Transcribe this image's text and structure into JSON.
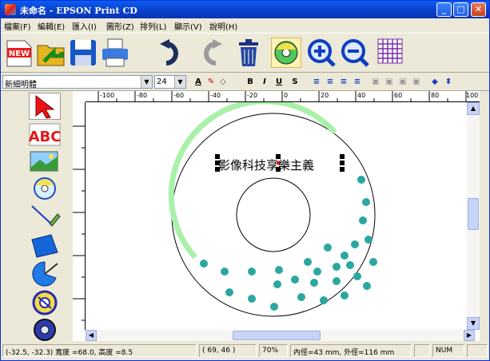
{
  "window": {
    "title": "未命名 - EPSON Print CD"
  },
  "menu": [
    {
      "label": "檔案(F)"
    },
    {
      "label": "編輯(E)"
    },
    {
      "label": "匯入(I)"
    },
    {
      "label": "圖形(Z)"
    },
    {
      "label": "排列(L)"
    },
    {
      "label": "顯示(V)"
    },
    {
      "label": "說明(H)"
    }
  ],
  "toolbar": {
    "new_label": "NEW",
    "icons": [
      "new-icon",
      "open-icon",
      "save-icon",
      "print-icon",
      "undo-icon",
      "redo-icon",
      "delete-icon",
      "cd-view-icon",
      "zoom-in-icon",
      "zoom-out-icon",
      "grid-icon"
    ]
  },
  "format": {
    "font": "新細明體",
    "size": "24",
    "bold": "B",
    "italic": "I",
    "underline": "U",
    "shadow": "S"
  },
  "ruler": {
    "h_ticks": [
      "-100",
      "-80",
      "-60",
      "-40",
      "-20",
      "0",
      "20",
      "40",
      "60",
      "80",
      "100"
    ]
  },
  "left_tools": [
    "select-arrow-icon",
    "text-abc-icon",
    "image-icon",
    "cd-label-icon",
    "line-icon",
    "rectangle-icon",
    "fan-shape-icon",
    "circle-text-icon",
    "disc-icon"
  ],
  "left_tools_text": {
    "abc": "ABC"
  },
  "canvas": {
    "label_text": "影像科技享樂主義",
    "colors": {
      "arc": "#a9f0a9",
      "dots": "#2aa7a0",
      "outline": "#000000"
    }
  },
  "status": {
    "pos_size": "(-32.5, -32.3) 寬度 =68.0, 高度 =8.5",
    "cursor": "( 69, 46 )",
    "zoom": "70%",
    "diameter": "內徑=43 mm, 外徑=116 mm",
    "num": "NUM"
  }
}
